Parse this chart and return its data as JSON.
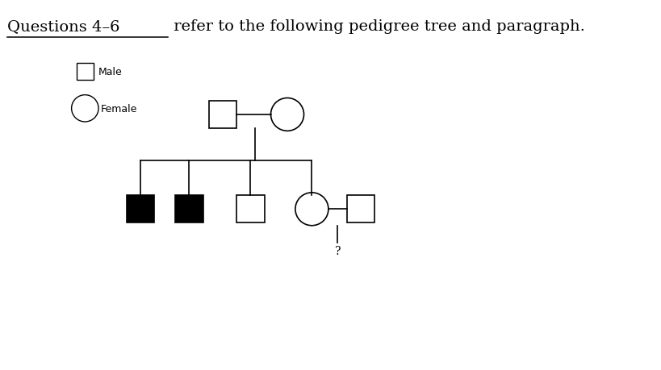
{
  "title_part1": "Questions 4–6",
  "title_part2": " refer to the following pedigree tree and paragraph.",
  "bg_color": "#ffffff",
  "legend_male_label": "Male",
  "legend_female_label": "Female",
  "title_fontsize": 14,
  "legend_fontsize": 9
}
